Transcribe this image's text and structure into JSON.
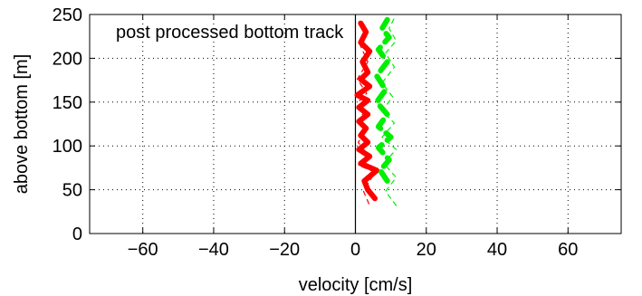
{
  "chart_data": {
    "type": "line",
    "title": "",
    "annotation": "post processed bottom track",
    "xlabel": "velocity [cm/s]",
    "ylabel": "above bottom [m]",
    "xlim": [
      -75,
      75
    ],
    "ylim": [
      0,
      250
    ],
    "xticks": [
      -60,
      -40,
      -20,
      0,
      20,
      40,
      60
    ],
    "yticks": [
      0,
      50,
      100,
      150,
      200,
      250
    ],
    "grid": true,
    "zero_line_x": 0,
    "series": [
      {
        "color": "#ff0000",
        "style": "thick-solid",
        "x": [
          5.5,
          3.5,
          2.5,
          6,
          1.5,
          4,
          1,
          3.5,
          1.5,
          3,
          1,
          3.5,
          1,
          3.5,
          0.5,
          4,
          1.5,
          3.5,
          2,
          4,
          1.5,
          3,
          1.5
        ],
        "y": [
          40,
          50,
          60,
          72,
          80,
          88,
          96,
          104,
          112,
          120,
          128,
          136,
          144,
          152,
          158,
          168,
          176,
          184,
          196,
          208,
          218,
          230,
          240
        ]
      },
      {
        "color": "#ff0000",
        "style": "thin-dashed",
        "x": [
          3.8,
          2.3,
          5.5,
          0.8,
          3.5,
          0.8,
          3,
          0.8,
          2.8,
          0.8,
          3.2,
          0.5,
          3.5,
          1,
          3.2,
          0.5
        ],
        "y": [
          34,
          48,
          70,
          78,
          90,
          104,
          118,
          130,
          140,
          150,
          160,
          176,
          196,
          218,
          232,
          244
        ]
      },
      {
        "color": "#00ee00",
        "style": "thick-dashed",
        "x": [
          9,
          7,
          9.5,
          6.5,
          10,
          6.5,
          9,
          6,
          8.5,
          6,
          9,
          6.5,
          9.5,
          7.5,
          9
        ],
        "y": [
          60,
          72,
          84,
          98,
          110,
          122,
          136,
          150,
          164,
          180,
          196,
          210,
          224,
          234,
          244
        ]
      },
      {
        "color": "#00ee00",
        "style": "thin-dashed",
        "x": [
          11.5,
          8.5,
          11.5,
          8,
          11.5,
          7.5,
          11,
          7.5,
          10.5,
          7.5,
          11,
          8.5,
          11.5,
          9.5,
          11
        ],
        "y": [
          32,
          48,
          64,
          80,
          96,
          110,
          126,
          140,
          156,
          172,
          190,
          206,
          220,
          234,
          246
        ]
      }
    ]
  }
}
